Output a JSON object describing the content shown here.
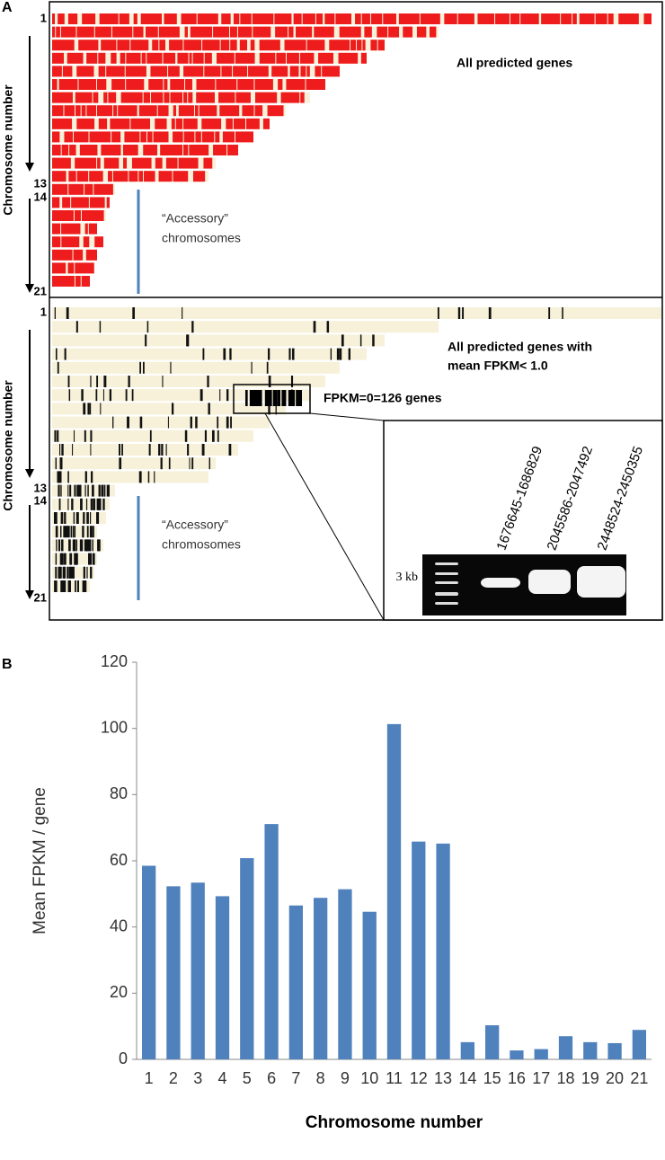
{
  "panel_a": {
    "label": "A",
    "top": {
      "row_labels": [
        "1",
        "13",
        "14",
        "21"
      ],
      "axis_label": "Chromosome number",
      "title": "All predicted genes",
      "accessory": [
        "“Accessory”",
        "chromosomes"
      ]
    },
    "bottom": {
      "row_labels": [
        "1",
        "13",
        "14",
        "21"
      ],
      "axis_label": "Chromosome number",
      "title": [
        "All predicted genes with",
        "mean FPKM< 1.0"
      ],
      "callout": "FPKM=0=126 genes",
      "accessory": [
        "“Accessory”",
        "chromosomes"
      ]
    },
    "gel": {
      "lanes": [
        "1676645-1686829",
        "2045586-2047492",
        "2448524-2450355"
      ],
      "marker": "3 kb"
    }
  },
  "chart_data": {
    "type": "bar",
    "label": "B",
    "categories": [
      "1",
      "2",
      "3",
      "4",
      "5",
      "6",
      "7",
      "8",
      "9",
      "10",
      "11",
      "12",
      "13",
      "14",
      "15",
      "16",
      "17",
      "18",
      "19",
      "20",
      "21"
    ],
    "values": [
      58.5,
      52.3,
      53.4,
      49.3,
      60.8,
      71.1,
      46.5,
      48.8,
      51.4,
      44.6,
      101.3,
      65.8,
      65.2,
      5.2,
      10.3,
      2.7,
      3.1,
      7.0,
      5.2,
      4.9,
      8.9
    ],
    "color": "#4f81bd",
    "ylim": [
      0,
      120
    ],
    "yticks": [
      0,
      20,
      40,
      60,
      80,
      100,
      120
    ],
    "ylabel": "Mean FPKM / gene",
    "xlabel": "Chromosome number"
  }
}
